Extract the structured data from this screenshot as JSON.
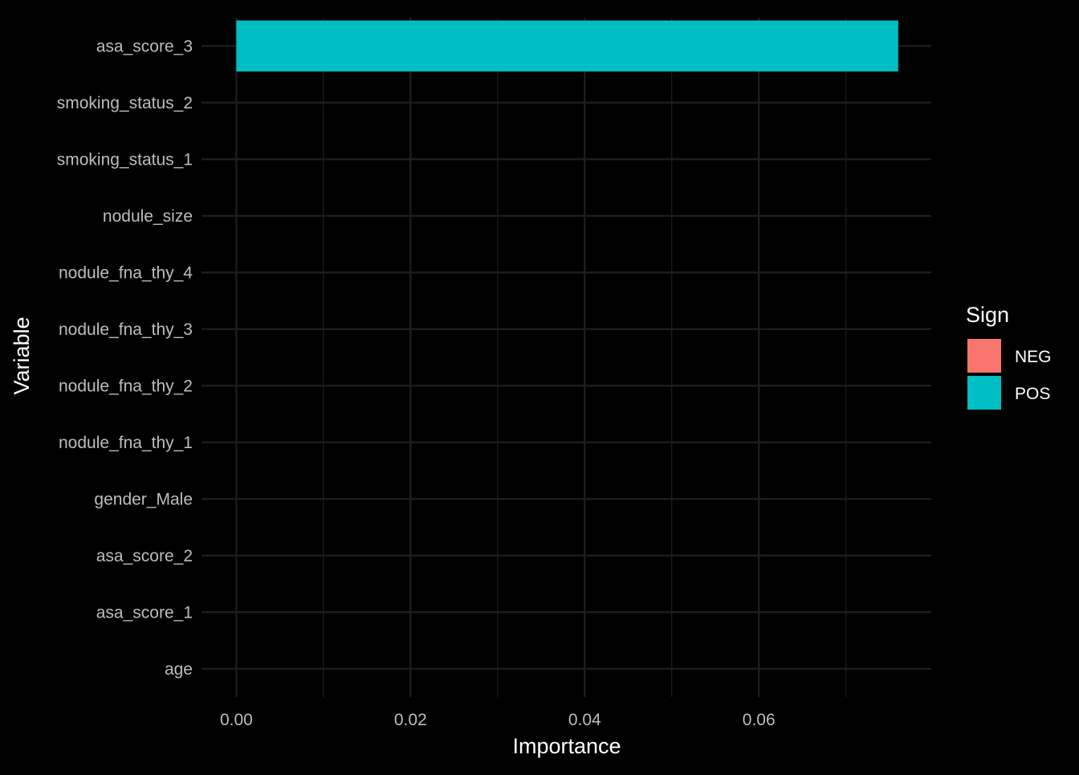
{
  "chart_data": {
    "type": "bar",
    "orientation": "horizontal",
    "categories": [
      "asa_score_3",
      "smoking_status_2",
      "smoking_status_1",
      "nodule_size",
      "nodule_fna_thy_4",
      "nodule_fna_thy_3",
      "nodule_fna_thy_2",
      "nodule_fna_thy_1",
      "gender_Male",
      "asa_score_2",
      "asa_score_1",
      "age"
    ],
    "values": [
      0.076,
      0,
      0,
      0,
      0,
      0,
      0,
      0,
      0,
      0,
      0,
      0
    ],
    "signs": [
      "POS",
      "POS",
      "POS",
      "POS",
      "POS",
      "POS",
      "POS",
      "POS",
      "POS",
      "POS",
      "POS",
      "POS"
    ],
    "xlabel": "Importance",
    "ylabel": "Variable",
    "xlim": [
      -0.004,
      0.0798
    ],
    "x_ticks": [
      0.0,
      0.02,
      0.04,
      0.06
    ],
    "x_tick_labels": [
      "0.00",
      "0.02",
      "0.04",
      "0.06"
    ],
    "grid": true,
    "legend": {
      "title": "Sign",
      "position": "right",
      "entries": [
        {
          "name": "NEG",
          "color": "#F8766D"
        },
        {
          "name": "POS",
          "color": "#00BFC4"
        }
      ]
    },
    "colors": {
      "background": "#000000",
      "grid": "#1f1f1f",
      "tick_text": "#bdbdbd",
      "text": "#ffffff"
    }
  }
}
